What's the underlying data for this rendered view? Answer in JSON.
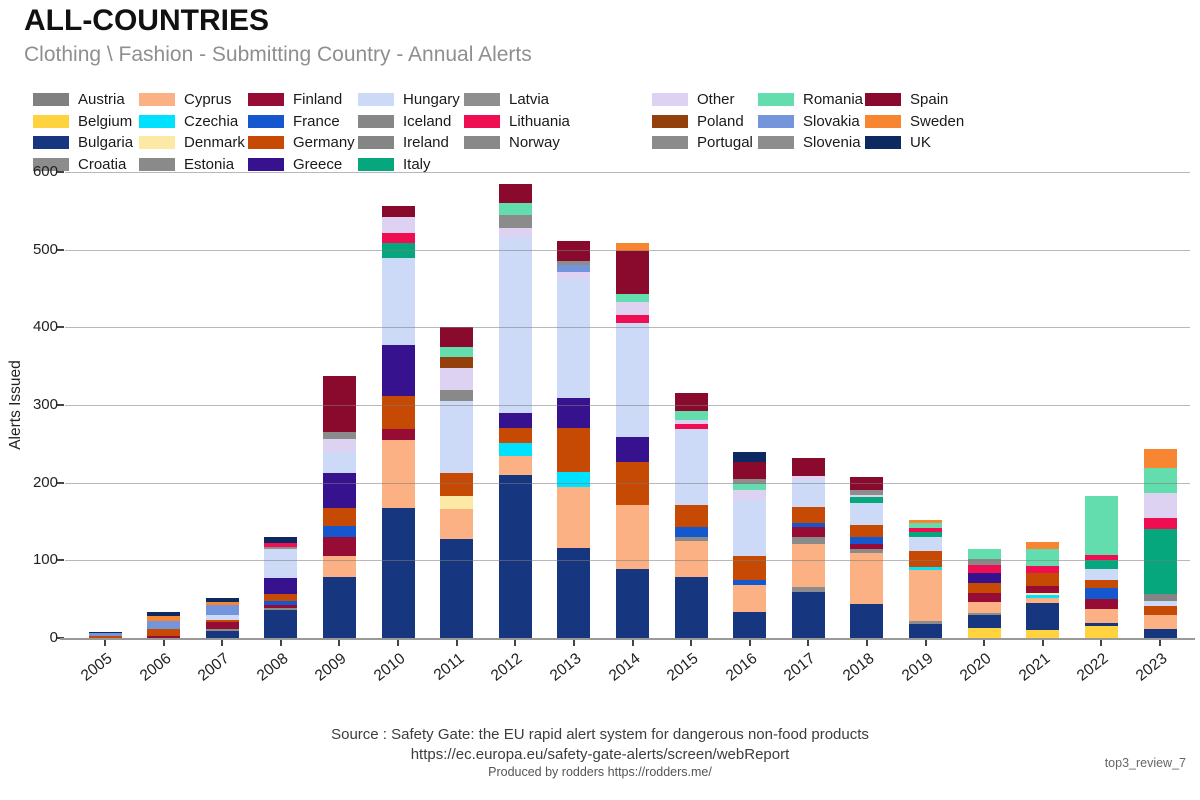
{
  "header": {
    "title": "ALL-COUNTRIES",
    "subtitle": "Clothing \\ Fashion - Submitting Country - Annual Alerts"
  },
  "footer": {
    "source_line1": "Source : Safety Gate: the EU rapid alert system for dangerous non-food products",
    "source_line2": "https://ec.europa.eu/safety-gate-alerts/screen/webReport",
    "produced_by": "Produced by rodders https://rodders.me/"
  },
  "watermark": "top3_review_7",
  "chart_data": {
    "type": "bar",
    "stacked": true,
    "title": "ALL-COUNTRIES — Clothing \\ Fashion - Submitting Country - Annual Alerts",
    "xlabel": "",
    "ylabel": "Alerts Issued",
    "ylim": [
      0,
      600
    ],
    "yticks": [
      0,
      100,
      200,
      300,
      400,
      500,
      600
    ],
    "grid": true,
    "legend_position": "top",
    "categories": [
      "2005",
      "2006",
      "2007",
      "2008",
      "2009",
      "2010",
      "2011",
      "2012",
      "2013",
      "2014",
      "2015",
      "2016",
      "2017",
      "2018",
      "2019",
      "2020",
      "2021",
      "2022",
      "2023"
    ],
    "series": [
      {
        "name": "Austria",
        "color": "#808080",
        "values": [
          0,
          0,
          0,
          0,
          0,
          0,
          0,
          0,
          0,
          0,
          0,
          0,
          0,
          0,
          0,
          0,
          0,
          0,
          0
        ]
      },
      {
        "name": "Belgium",
        "color": "#FFD23F",
        "values": [
          0,
          0,
          0,
          0,
          0,
          0,
          0,
          0,
          0,
          0,
          0,
          0,
          0,
          0,
          0,
          13,
          10,
          15,
          0
        ]
      },
      {
        "name": "Bulgaria",
        "color": "#16377F",
        "values": [
          0,
          0,
          9,
          36,
          78,
          167,
          128,
          210,
          116,
          89,
          78,
          33,
          59,
          44,
          18,
          17,
          35,
          4,
          12
        ]
      },
      {
        "name": "Croatia",
        "color": "#8C8C8C",
        "values": [
          0,
          0,
          3,
          2,
          0,
          0,
          0,
          0,
          0,
          0,
          0,
          0,
          7,
          0,
          4,
          2,
          0,
          0,
          0
        ]
      },
      {
        "name": "Cyprus",
        "color": "#FBB183",
        "values": [
          0,
          0,
          0,
          0,
          28,
          88,
          38,
          24,
          79,
          82,
          47,
          35,
          55,
          66,
          66,
          14,
          6,
          18,
          18
        ]
      },
      {
        "name": "Czechia",
        "color": "#00E0FF",
        "values": [
          0,
          0,
          0,
          0,
          0,
          0,
          0,
          17,
          19,
          0,
          0,
          0,
          0,
          0,
          4,
          0,
          4,
          0,
          0
        ]
      },
      {
        "name": "Denmark",
        "color": "#FCE9A6",
        "values": [
          0,
          0,
          0,
          0,
          0,
          0,
          17,
          0,
          0,
          0,
          0,
          0,
          0,
          0,
          0,
          0,
          3,
          0,
          0
        ]
      },
      {
        "name": "Estonia",
        "color": "#8A8A8A",
        "values": [
          0,
          0,
          0,
          0,
          0,
          0,
          0,
          0,
          0,
          0,
          5,
          0,
          9,
          5,
          0,
          0,
          0,
          0,
          0
        ]
      },
      {
        "name": "Finland",
        "color": "#970C34",
        "values": [
          0,
          2,
          8,
          5,
          24,
          14,
          0,
          0,
          0,
          0,
          0,
          0,
          13,
          6,
          0,
          12,
          9,
          13,
          0
        ]
      },
      {
        "name": "France",
        "color": "#1557CE",
        "values": [
          0,
          0,
          0,
          5,
          14,
          0,
          0,
          0,
          0,
          0,
          13,
          7,
          5,
          9,
          0,
          0,
          0,
          15,
          0
        ]
      },
      {
        "name": "Germany",
        "color": "#C64A04",
        "values": [
          3,
          9,
          3,
          9,
          23,
          43,
          30,
          19,
          56,
          56,
          28,
          30,
          21,
          15,
          20,
          13,
          17,
          10,
          11
        ]
      },
      {
        "name": "Greece",
        "color": "#36128F",
        "values": [
          0,
          0,
          0,
          20,
          46,
          65,
          0,
          20,
          39,
          32,
          0,
          0,
          0,
          0,
          0,
          13,
          0,
          0,
          0
        ]
      },
      {
        "name": "Hungary",
        "color": "#CCDAF7",
        "values": [
          0,
          0,
          7,
          37,
          27,
          112,
          92,
          226,
          153,
          147,
          98,
          73,
          35,
          29,
          18,
          0,
          0,
          14,
          7
        ]
      },
      {
        "name": "Iceland",
        "color": "#878787",
        "values": [
          0,
          0,
          0,
          0,
          0,
          0,
          0,
          0,
          0,
          0,
          0,
          0,
          0,
          0,
          0,
          0,
          0,
          0,
          0
        ]
      },
      {
        "name": "Ireland",
        "color": "#858585",
        "values": [
          0,
          0,
          0,
          0,
          0,
          0,
          0,
          0,
          0,
          0,
          0,
          0,
          0,
          0,
          0,
          0,
          0,
          0,
          9
        ]
      },
      {
        "name": "Italy",
        "color": "#06A77D",
        "values": [
          0,
          0,
          0,
          0,
          0,
          20,
          0,
          0,
          0,
          0,
          0,
          0,
          0,
          7,
          7,
          0,
          0,
          12,
          83
        ]
      },
      {
        "name": "Latvia",
        "color": "#8F8F8F",
        "values": [
          0,
          0,
          0,
          3,
          0,
          0,
          0,
          0,
          0,
          0,
          0,
          0,
          0,
          0,
          0,
          0,
          0,
          0,
          0
        ]
      },
      {
        "name": "Lithuania",
        "color": "#EF0E52",
        "values": [
          0,
          0,
          0,
          5,
          0,
          12,
          0,
          0,
          0,
          10,
          7,
          0,
          0,
          0,
          5,
          10,
          9,
          6,
          15
        ]
      },
      {
        "name": "Norway",
        "color": "#898989",
        "values": [
          0,
          0,
          0,
          0,
          0,
          0,
          14,
          0,
          0,
          0,
          0,
          0,
          0,
          0,
          0,
          8,
          0,
          0,
          0
        ]
      },
      {
        "name": "Other",
        "color": "#DED2F2",
        "values": [
          0,
          0,
          0,
          0,
          16,
          21,
          29,
          12,
          9,
          16,
          5,
          12,
          5,
          3,
          0,
          0,
          0,
          0,
          32
        ]
      },
      {
        "name": "Poland",
        "color": "#93400D",
        "values": [
          0,
          0,
          0,
          0,
          0,
          0,
          14,
          0,
          0,
          0,
          0,
          0,
          0,
          0,
          0,
          0,
          0,
          0,
          0
        ]
      },
      {
        "name": "Portugal",
        "color": "#8B8B8B",
        "values": [
          0,
          0,
          0,
          0,
          9,
          0,
          0,
          16,
          0,
          0,
          0,
          0,
          0,
          0,
          0,
          0,
          0,
          0,
          0
        ]
      },
      {
        "name": "Romania",
        "color": "#63DCAE",
        "values": [
          0,
          0,
          0,
          0,
          0,
          0,
          13,
          16,
          0,
          11,
          11,
          8,
          0,
          0,
          6,
          13,
          22,
          76,
          32
        ]
      },
      {
        "name": "Slovakia",
        "color": "#7494DB",
        "values": [
          3,
          11,
          12,
          0,
          0,
          0,
          0,
          0,
          9,
          0,
          0,
          0,
          0,
          0,
          0,
          0,
          0,
          0,
          0
        ]
      },
      {
        "name": "Slovenia",
        "color": "#8D8D8D",
        "values": [
          0,
          0,
          0,
          0,
          0,
          0,
          0,
          0,
          6,
          0,
          0,
          7,
          0,
          6,
          0,
          0,
          0,
          0,
          0
        ]
      },
      {
        "name": "Spain",
        "color": "#8A0A2D",
        "values": [
          0,
          0,
          0,
          0,
          72,
          14,
          25,
          25,
          25,
          55,
          23,
          22,
          23,
          17,
          0,
          0,
          0,
          0,
          0
        ]
      },
      {
        "name": "Sweden",
        "color": "#F88532",
        "values": [
          0,
          6,
          4,
          0,
          0,
          0,
          0,
          0,
          0,
          11,
          0,
          0,
          0,
          0,
          4,
          0,
          9,
          0,
          24
        ]
      },
      {
        "name": "UK",
        "color": "#0D2961",
        "values": [
          2,
          5,
          6,
          8,
          0,
          0,
          0,
          0,
          0,
          0,
          0,
          13,
          0,
          0,
          0,
          0,
          0,
          0,
          0
        ]
      }
    ]
  }
}
